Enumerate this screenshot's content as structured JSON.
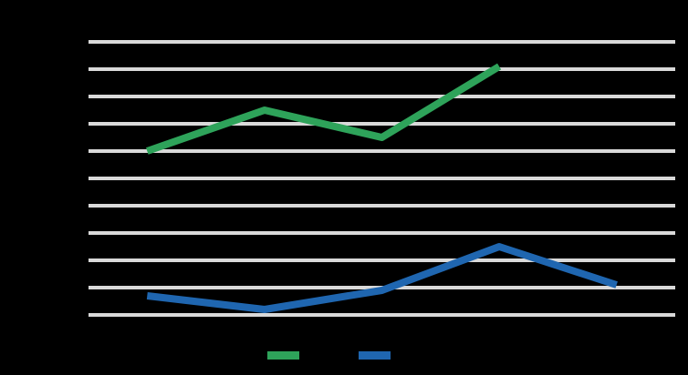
{
  "chart_data": {
    "type": "line",
    "categories": [
      null,
      null,
      null,
      null,
      null
    ],
    "series": [
      {
        "color": "#2ea35a",
        "values": [
          6,
          7.5,
          6.5,
          9.1,
          null
        ]
      },
      {
        "color": "#1f66b0",
        "values": [
          0.7,
          0.2,
          0.9,
          2.5,
          1.1
        ]
      }
    ],
    "ylim": [
      0,
      10
    ],
    "yticks": [
      0,
      1,
      2,
      3,
      4,
      5,
      6,
      7,
      8,
      9,
      10
    ],
    "grid": true
  }
}
